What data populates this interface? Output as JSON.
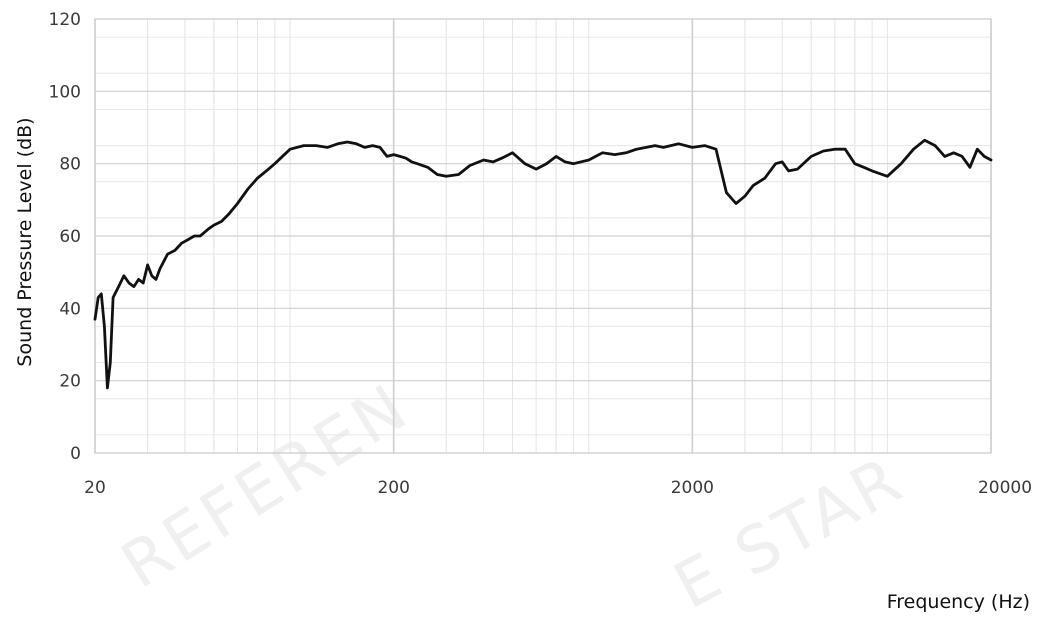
{
  "chart_data": {
    "type": "line",
    "title": "",
    "xlabel": "Frequency (Hz)",
    "ylabel": "Sound Pressure Level (dB)",
    "x_scale": "log",
    "xlim": [
      20,
      20000
    ],
    "ylim": [
      0,
      120
    ],
    "x_ticks": [
      "20",
      "200",
      "2000",
      "20000"
    ],
    "x_tick_values": [
      20,
      200,
      2000,
      20000
    ],
    "y_ticks": [
      "0",
      "20",
      "40",
      "60",
      "80",
      "100",
      "120"
    ],
    "y_tick_values": [
      0,
      20,
      40,
      60,
      80,
      100,
      120
    ],
    "grid": true,
    "legend": "none",
    "line_color": "#111111",
    "grid_major_color": "#cfcfcf",
    "grid_minor_color": "#e6e6e6",
    "watermark": [
      "REFEREN",
      "E STAR"
    ],
    "series": [
      {
        "x": [
          20,
          20.5,
          21,
          21.5,
          22,
          22.5,
          23,
          24,
          25,
          26,
          27,
          28,
          29,
          30,
          31,
          32,
          33,
          34,
          35,
          37,
          39,
          41,
          43,
          45,
          48,
          50,
          53,
          56,
          60,
          65,
          70,
          75,
          80,
          90,
          100,
          110,
          120,
          130,
          140,
          150,
          160,
          170,
          180,
          190,
          200,
          210,
          220,
          230,
          240,
          260,
          280,
          300,
          330,
          360,
          400,
          430,
          460,
          500,
          550,
          600,
          650,
          700,
          750,
          800,
          900,
          1000,
          1100,
          1200,
          1300,
          1400,
          1500,
          1600,
          1800,
          2000,
          2200,
          2400,
          2600,
          2800,
          3000,
          3200,
          3500,
          3800,
          4000,
          4200,
          4500,
          5000,
          5500,
          6000,
          6500,
          7000,
          7500,
          8000,
          9000,
          10000,
          11000,
          12000,
          13000,
          14000,
          15000,
          16000,
          17000,
          18000,
          19000,
          20000
        ],
        "y": [
          37,
          43,
          44,
          35,
          18,
          25,
          43,
          46,
          49,
          47,
          46,
          48,
          47,
          52,
          49,
          48,
          51,
          53,
          55,
          56,
          58,
          59,
          60,
          60,
          62,
          63,
          64,
          66,
          69,
          73,
          76,
          78,
          80,
          84,
          85,
          85,
          84.5,
          85.5,
          86,
          85.5,
          84.5,
          85,
          84.5,
          82,
          82.5,
          82,
          81.5,
          80.5,
          80,
          79,
          77,
          76.5,
          77,
          79.5,
          81,
          80.5,
          81.5,
          83,
          80,
          78.5,
          80,
          82,
          80.5,
          80,
          81,
          83,
          82.5,
          83,
          84,
          84.5,
          85,
          84.5,
          85.5,
          84.5,
          85,
          84,
          72,
          69,
          71,
          74,
          76,
          80,
          80.5,
          78,
          78.5,
          82,
          83.5,
          84,
          84,
          80,
          79,
          78,
          76.5,
          80,
          84,
          86.5,
          85,
          82,
          83,
          82,
          79,
          84,
          82,
          81
        ]
      }
    ]
  }
}
